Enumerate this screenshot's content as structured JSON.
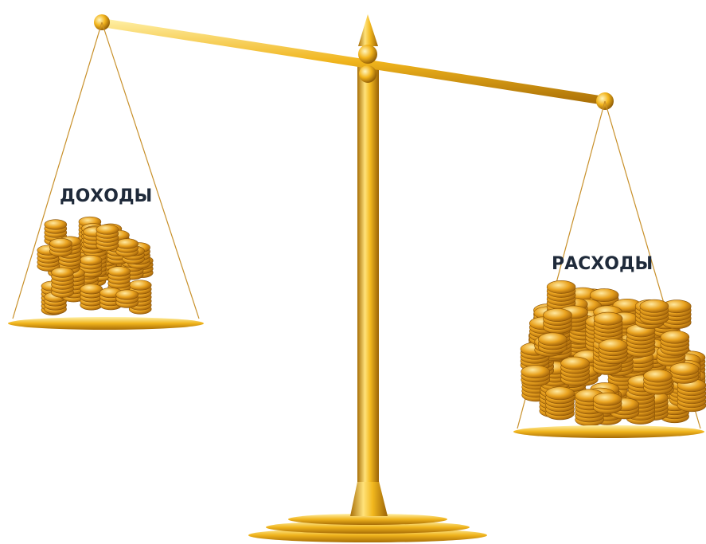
{
  "labels": {
    "left": "ДОХОДЫ",
    "right": "РАСХОДЫ"
  }
}
